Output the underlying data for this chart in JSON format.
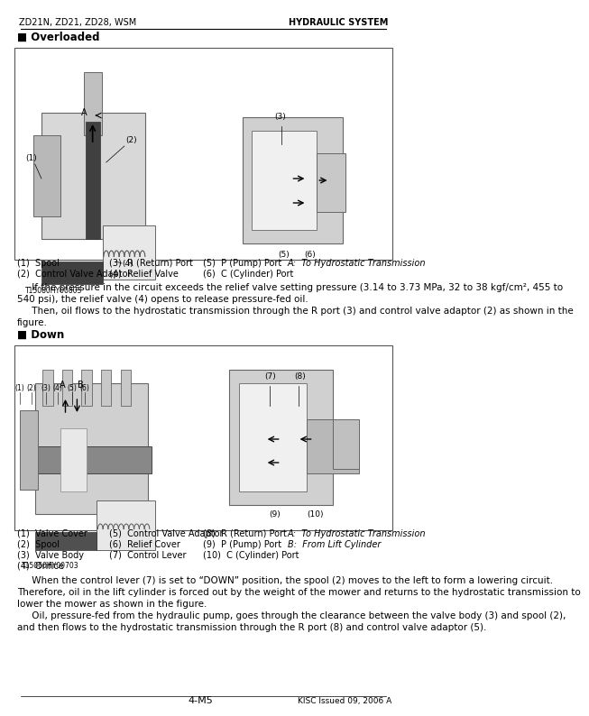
{
  "page_header_left": "ZD21N, ZD21, ZD28, WSM",
  "page_header_right": "HYDRAULIC SYSTEM",
  "page_footer_center": "4-M5",
  "page_footer_right": "KISC Issued 09, 2006 A",
  "section1_title": "■ Overloaded",
  "section1_image_code": "T15080HY00803",
  "section1_legend": [
    [
      "(1)  Spool",
      "(3)  R (Return) Port",
      "(5)  P (Pump) Port",
      "A:  To Hydrostatic Transmission"
    ],
    [
      "(2)  Control Valve Adaptor",
      "(4)  Relief Valve",
      "(6)  C (Cylinder) Port",
      ""
    ]
  ],
  "section1_body": [
    "     If the pressure in the circuit exceeds the relief valve setting pressure (3.14 to 3.73 MPa, 32 to 38 kgf/cm², 455 to",
    "540 psi), the relief valve (4) opens to release pressure-fed oil.",
    "     Then, oil flows to the hydrostatic transmission through the R port (3) and control valve adaptor (2) as shown in the",
    "figure."
  ],
  "section2_title": "■ Down",
  "section2_image_code": "T15060HY00703",
  "section2_legend": [
    [
      "(1)  Valve Cover",
      "(5)  Control Valve Adaptor",
      "(8)  R (Return) Port",
      "A:  To Hydrostatic Transmission"
    ],
    [
      "(2)  Spool",
      "(6)  Relief Cover",
      "(9)  P (Pump) Port",
      "B:  From Lift Cylinder"
    ],
    [
      "(3)  Valve Body",
      "(7)  Control Lever",
      "(10)  C (Cylinder) Port",
      ""
    ],
    [
      "(4)  Orifice",
      "",
      "",
      ""
    ]
  ],
  "section2_body": [
    "     When the control lever (7) is set to “DOWN” position, the spool (2) moves to the left to form a lowering circuit.",
    "Therefore, oil in the lift cylinder is forced out by the weight of the mower and returns to the hydrostatic transmission to",
    "lower the mower as shown in the figure.",
    "     Oil, pressure-fed from the hydraulic pump, goes through the clearance between the valve body (3) and spool (2),",
    "and then flows to the hydrostatic transmission through the R port (8) and control valve adaptor (5)."
  ],
  "bg_color": "#ffffff",
  "diagram_bg": "#f0f0f0",
  "border_color": "#888888",
  "text_color": "#000000",
  "header_line_color": "#000000"
}
